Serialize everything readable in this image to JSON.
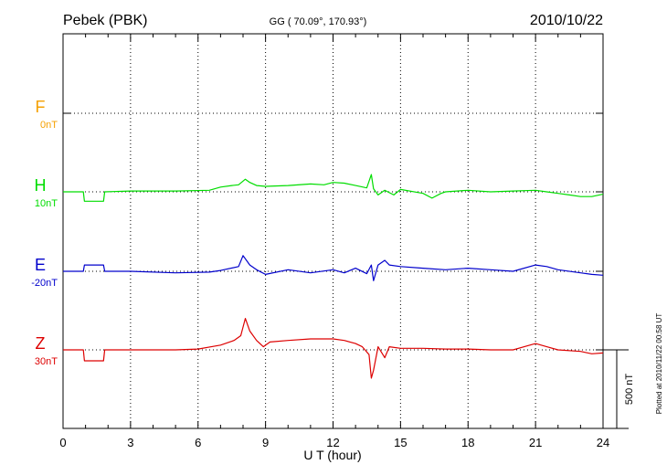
{
  "header": {
    "station": "Pebek (PBK)",
    "coords": "GG ( 70.09°, 170.93°)",
    "date": "2010/10/22"
  },
  "footer": {
    "plotted": "Plotted at 2010/11/22 00:58 UT"
  },
  "scale_bar": {
    "label": "500 nT",
    "value_nT": 500
  },
  "chart_data": {
    "type": "line",
    "title": "Pebek (PBK)",
    "xlabel": "U T (hour)",
    "ylabel": "",
    "xlim": [
      0,
      24
    ],
    "x_ticks": [
      "0",
      "3",
      "6",
      "9",
      "12",
      "15",
      "18",
      "21",
      "24"
    ],
    "grid": true,
    "series": [
      {
        "name": "F",
        "baseline_label": "0nT",
        "color": "#f5a000",
        "x": [],
        "values": []
      },
      {
        "name": "H",
        "baseline_label": "10nT",
        "color": "#00dd00",
        "x": [
          0,
          0.9,
          0.95,
          1.8,
          1.85,
          3,
          5,
          6.5,
          7,
          7.5,
          7.8,
          8.1,
          8.3,
          8.6,
          9,
          10,
          11,
          11.6,
          12,
          12.5,
          13,
          13.5,
          13.7,
          13.8,
          14,
          14.3,
          14.7,
          15,
          16,
          16.4,
          16.8,
          17,
          18,
          19,
          20,
          21,
          21.5,
          22,
          22.5,
          23,
          23.5,
          24
        ],
        "values": [
          0,
          0,
          -60,
          -60,
          0,
          5,
          5,
          10,
          30,
          40,
          45,
          80,
          60,
          40,
          35,
          40,
          50,
          45,
          60,
          55,
          40,
          25,
          110,
          20,
          -20,
          10,
          -20,
          15,
          -10,
          -40,
          -10,
          0,
          10,
          0,
          5,
          10,
          0,
          -10,
          -20,
          -30,
          -30,
          -15
        ]
      },
      {
        "name": "E",
        "baseline_label": "-20nT",
        "color": "#0000cc",
        "x": [
          0,
          0.9,
          0.95,
          1.8,
          1.85,
          3,
          5,
          6.5,
          7,
          7.8,
          8,
          8.3,
          8.6,
          9,
          10,
          11,
          12,
          12.5,
          13,
          13.5,
          13.7,
          13.8,
          14,
          14.3,
          14.5,
          15,
          16,
          17,
          18,
          19,
          20,
          21,
          21.5,
          22,
          23,
          23.5,
          24
        ],
        "values": [
          0,
          0,
          40,
          40,
          0,
          0,
          -10,
          -5,
          5,
          30,
          100,
          40,
          10,
          -20,
          10,
          -10,
          10,
          -10,
          20,
          -15,
          40,
          -60,
          40,
          70,
          40,
          30,
          20,
          10,
          20,
          10,
          0,
          40,
          30,
          10,
          -10,
          -20,
          -25
        ]
      },
      {
        "name": "Z",
        "baseline_label": "30nT",
        "color": "#dd0000",
        "x": [
          0,
          0.9,
          0.95,
          1.8,
          1.85,
          3,
          5,
          6,
          7,
          7.6,
          7.9,
          8.1,
          8.3,
          8.6,
          8.9,
          9.2,
          10,
          11,
          12,
          12.5,
          13,
          13.3,
          13.6,
          13.7,
          13.8,
          14,
          14.3,
          14.5,
          15,
          16,
          17,
          18,
          19,
          20,
          21,
          21.5,
          22,
          23,
          23.5,
          24
        ],
        "values": [
          0,
          0,
          -70,
          -70,
          0,
          0,
          0,
          5,
          30,
          60,
          90,
          200,
          120,
          60,
          20,
          50,
          60,
          70,
          70,
          60,
          40,
          20,
          -30,
          -180,
          -130,
          20,
          -50,
          20,
          10,
          10,
          5,
          5,
          0,
          0,
          40,
          20,
          0,
          -10,
          -25,
          -20
        ]
      }
    ]
  }
}
